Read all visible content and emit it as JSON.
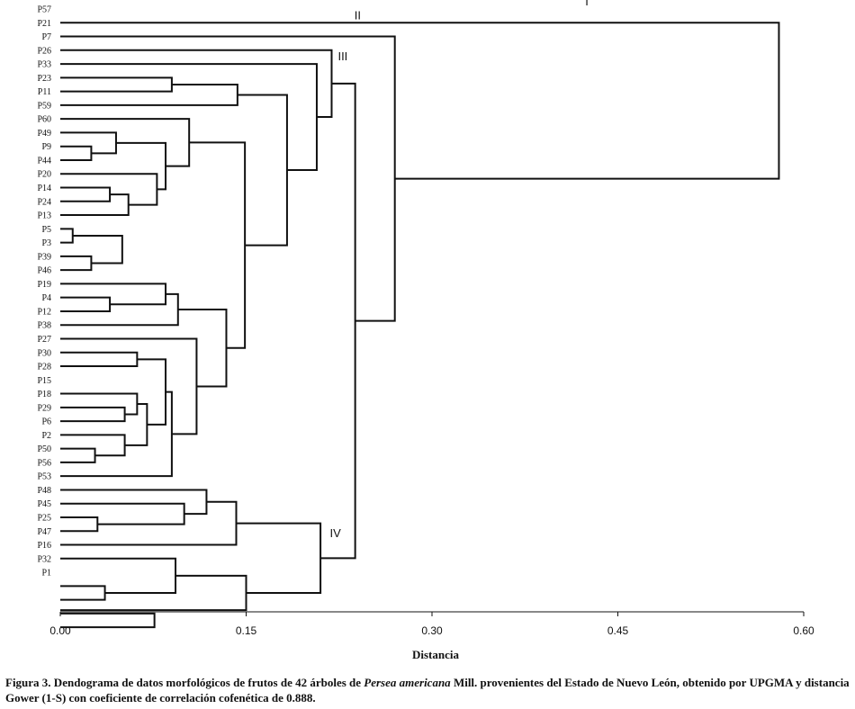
{
  "chart_data": {
    "type": "dendrogram",
    "xlabel": "Distancia",
    "xlim": [
      0,
      0.6
    ],
    "x_ticks": [
      0.0,
      0.15,
      0.3,
      0.45,
      0.6
    ],
    "x_tick_labels": [
      "0.00",
      "0.15",
      "0.30",
      "0.45",
      "0.60"
    ],
    "leaf_labels": [
      "P57",
      "P21",
      "P7",
      "P26",
      "P33",
      "P23",
      "P11",
      "P59",
      "P60",
      "P49",
      "P9",
      "P44",
      "P20",
      "P14",
      "P24",
      "P13",
      "P5",
      "P3",
      "P39",
      "P46",
      "P19",
      "P4",
      "P12",
      "P38",
      "P27",
      "P30",
      "P28",
      "P15",
      "P18",
      "P29",
      "P6",
      "P2",
      "P50",
      "P56",
      "P53",
      "P48",
      "P45",
      "P25",
      "P47",
      "P16",
      "P32",
      "P1"
    ],
    "leaf_rows": 45,
    "merges": [
      {
        "a": 16,
        "b": 17,
        "height": 0.01
      },
      {
        "a": 10,
        "b": 11,
        "height": 0.025
      },
      {
        "a": 18,
        "b": 19,
        "height": 0.025
      },
      {
        "a": 32,
        "b": 33,
        "height": 0.028
      },
      {
        "a": 37,
        "b": 38,
        "height": 0.03
      },
      {
        "a": 42,
        "b": 43,
        "height": 0.036
      },
      {
        "a": 9,
        "b": 10.5,
        "height": 0.045
      },
      {
        "a": 13,
        "b": 14,
        "height": 0.04
      },
      {
        "a": 21,
        "b": 22,
        "height": 0.04
      },
      {
        "a": 29,
        "b": 30,
        "height": 0.052
      },
      {
        "a": 31,
        "b": 32.5,
        "height": 0.052
      },
      {
        "a": 16.5,
        "b": 18.5,
        "height": 0.05
      },
      {
        "a": 13.5,
        "b": 15,
        "height": 0.055
      },
      {
        "a": 28,
        "b": 29.5,
        "height": 0.062
      },
      {
        "a": 25,
        "b": 26,
        "height": 0.062
      },
      {
        "a": 28.75,
        "b": 31.75,
        "height": 0.07
      },
      {
        "a": 44,
        "b": 45,
        "height": 0.076
      },
      {
        "a": 12,
        "b": 14.25,
        "height": 0.078
      },
      {
        "a": 20,
        "b": 21.5,
        "height": 0.085
      },
      {
        "a": 9.75,
        "b": 13.125,
        "height": 0.085
      },
      {
        "a": 25.5,
        "b": 30.25,
        "height": 0.085
      },
      {
        "a": 5,
        "b": 6,
        "height": 0.09
      },
      {
        "a": 27.875,
        "b": 34,
        "height": 0.09
      },
      {
        "a": 20.75,
        "b": 23,
        "height": 0.095
      },
      {
        "a": 40,
        "b": 42.5,
        "height": 0.093
      },
      {
        "a": 36,
        "b": 37.5,
        "height": 0.1
      },
      {
        "a": 8,
        "b": 11.4375,
        "height": 0.104
      },
      {
        "a": 24,
        "b": 30.9375,
        "height": 0.11
      },
      {
        "a": 35,
        "b": 36.75,
        "height": 0.118
      },
      {
        "a": 21.875,
        "b": 27.46875,
        "height": 0.134
      },
      {
        "a": 5.5,
        "b": 7,
        "height": 0.143
      },
      {
        "a": 35.875,
        "b": 39,
        "height": 0.142
      },
      {
        "a": 9.71875,
        "b": 24.671875,
        "height": 0.149
      },
      {
        "a": 41.25,
        "b": 43.75,
        "height": 0.15
      },
      {
        "a": 6.25,
        "b": 17.1953125,
        "height": 0.183
      },
      {
        "a": 4,
        "b": 11.72265625,
        "height": 0.207
      },
      {
        "a": 37.4375,
        "b": 42.5,
        "height": 0.21
      },
      {
        "a": 3,
        "b": 7.861328125,
        "height": 0.219
      },
      {
        "a": 5.4306640625,
        "b": 39.96875,
        "height": 0.238
      },
      {
        "a": 2,
        "b": 22.69970703125,
        "height": 0.27
      },
      {
        "a": 1,
        "b": 12.349853515625,
        "height": 0.58
      }
    ],
    "cluster_labels": [
      {
        "text": "I",
        "row": 0.0,
        "height": 0.425
      },
      {
        "text": "II",
        "row": 1.0,
        "height": 0.24
      },
      {
        "text": "III",
        "row": 4.0,
        "height": 0.228
      },
      {
        "text": "IV",
        "row": 38.7,
        "height": 0.222
      }
    ]
  },
  "caption": {
    "prefix": "Figura 3. Dendograma de datos morfológicos de frutos de 42 árboles de ",
    "species": "Persea americana",
    "suffix": " Mill. provenientes del Estado de Nuevo León, obtenido por UPGMA y distancia Gower (1-S) con coeficiente de correlación cofenética de 0.888."
  }
}
